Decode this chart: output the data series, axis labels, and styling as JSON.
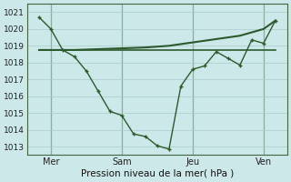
{
  "background_color": "#cce8e8",
  "grid_color_major": "#aacccc",
  "grid_color_minor": "#bbdddd",
  "line_color": "#2d5a2d",
  "title": "Pression niveau de la mer( hPa )",
  "yticks": [
    1013,
    1014,
    1015,
    1016,
    1017,
    1018,
    1019,
    1020,
    1021
  ],
  "ylim": [
    1012.5,
    1021.5
  ],
  "xtick_labels": [
    "Mer",
    "Sam",
    "Jeu",
    "Ven"
  ],
  "xtick_positions": [
    1,
    4,
    7,
    10
  ],
  "vline_positions": [
    1,
    4,
    7,
    10
  ],
  "xlim": [
    0,
    11
  ],
  "line1_x": [
    0.5,
    1.0,
    1.5,
    2.0,
    2.5,
    3.0,
    3.5,
    4.0,
    4.5,
    5.0,
    5.5,
    6.0,
    6.5,
    7.0,
    7.5,
    8.0,
    8.5,
    9.0,
    9.5,
    10.0,
    10.5
  ],
  "line1_y": [
    1020.7,
    1020.0,
    1018.75,
    1018.35,
    1017.5,
    1016.3,
    1015.1,
    1014.85,
    1013.75,
    1013.6,
    1013.05,
    1012.85,
    1016.6,
    1017.6,
    1017.8,
    1018.65,
    1018.25,
    1017.85,
    1019.35,
    1019.15,
    1020.5
  ],
  "line2_x": [
    0.5,
    1.0,
    1.5,
    2.0,
    3.0,
    4.0,
    5.0,
    6.0,
    7.0,
    8.0,
    9.0,
    10.0,
    10.5
  ],
  "line2_y": [
    1018.75,
    1018.75,
    1018.75,
    1018.75,
    1018.8,
    1018.85,
    1018.9,
    1019.0,
    1019.2,
    1019.4,
    1019.6,
    1020.0,
    1020.5
  ],
  "line3_x": [
    0.5,
    1.0,
    1.5,
    2.0,
    3.0,
    4.0,
    5.0,
    6.0,
    7.0,
    8.0,
    9.0,
    10.0,
    10.5
  ],
  "line3_y": [
    1018.75,
    1018.75,
    1018.75,
    1018.75,
    1018.75,
    1018.75,
    1018.75,
    1018.75,
    1018.75,
    1018.75,
    1018.75,
    1018.75,
    1018.75
  ]
}
